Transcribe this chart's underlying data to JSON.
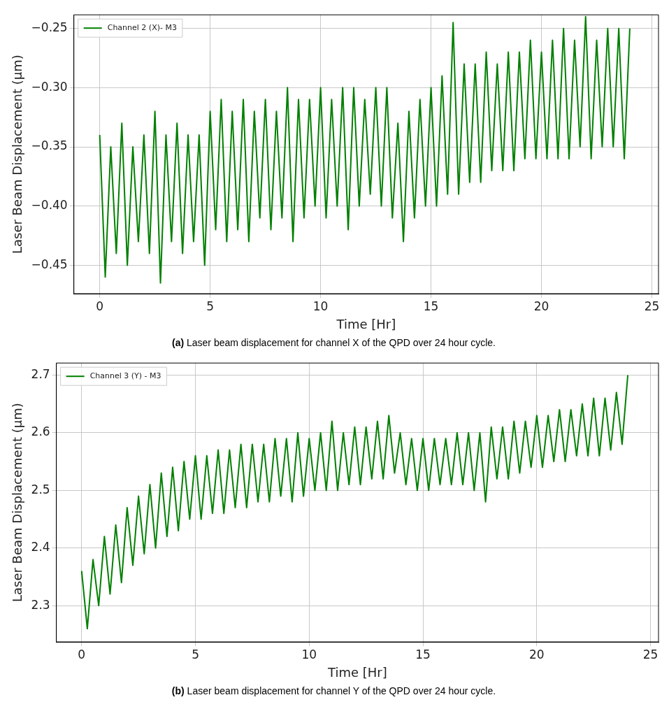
{
  "chart_data": [
    {
      "type": "line",
      "xlabel": "Time [Hr]",
      "ylabel": "Laser Beam Displacement (μm)",
      "annotations": [
        "(a) Laser beam displacement for channel X of the QPD over 24 hour cycle."
      ],
      "x": [
        0,
        0.25,
        0.5,
        0.75,
        1,
        1.25,
        1.5,
        1.75,
        2,
        2.25,
        2.5,
        2.75,
        3,
        3.25,
        3.5,
        3.75,
        4,
        4.25,
        4.5,
        4.75,
        5,
        5.25,
        5.5,
        5.75,
        6,
        6.25,
        6.5,
        6.75,
        7,
        7.25,
        7.5,
        7.75,
        8,
        8.25,
        8.5,
        8.75,
        9,
        9.25,
        9.5,
        9.75,
        10,
        10.25,
        10.5,
        10.75,
        11,
        11.25,
        11.5,
        11.75,
        12,
        12.25,
        12.5,
        12.75,
        13,
        13.25,
        13.5,
        13.75,
        14,
        14.25,
        14.5,
        14.75,
        15,
        15.25,
        15.5,
        15.75,
        16,
        16.25,
        16.5,
        16.75,
        17,
        17.25,
        17.5,
        17.75,
        18,
        18.25,
        18.5,
        18.75,
        19,
        19.25,
        19.5,
        19.75,
        20,
        20.25,
        20.5,
        20.75,
        21,
        21.25,
        21.5,
        21.75,
        22,
        22.25,
        22.5,
        22.75,
        23,
        23.25,
        23.5,
        23.75,
        24
      ],
      "series": [
        {
          "name": "Channel 2 (X)- M3",
          "color": "#008000",
          "values": [
            -0.34,
            -0.46,
            -0.35,
            -0.44,
            -0.33,
            -0.45,
            -0.35,
            -0.43,
            -0.34,
            -0.44,
            -0.32,
            -0.465,
            -0.34,
            -0.43,
            -0.33,
            -0.44,
            -0.34,
            -0.43,
            -0.34,
            -0.45,
            -0.32,
            -0.42,
            -0.31,
            -0.43,
            -0.32,
            -0.42,
            -0.31,
            -0.43,
            -0.32,
            -0.41,
            -0.31,
            -0.42,
            -0.32,
            -0.41,
            -0.3,
            -0.43,
            -0.31,
            -0.41,
            -0.31,
            -0.4,
            -0.3,
            -0.41,
            -0.31,
            -0.4,
            -0.3,
            -0.42,
            -0.3,
            -0.4,
            -0.31,
            -0.39,
            -0.3,
            -0.4,
            -0.3,
            -0.41,
            -0.33,
            -0.43,
            -0.32,
            -0.41,
            -0.31,
            -0.4,
            -0.3,
            -0.4,
            -0.29,
            -0.39,
            -0.245,
            -0.39,
            -0.28,
            -0.38,
            -0.28,
            -0.38,
            -0.27,
            -0.37,
            -0.28,
            -0.37,
            -0.27,
            -0.37,
            -0.27,
            -0.36,
            -0.26,
            -0.36,
            -0.27,
            -0.36,
            -0.26,
            -0.36,
            -0.25,
            -0.36,
            -0.26,
            -0.35,
            -0.24,
            -0.36,
            -0.26,
            -0.35,
            -0.25,
            -0.35,
            -0.25,
            -0.36,
            -0.25
          ]
        }
      ],
      "xlim": [
        -1.17,
        25.3
      ],
      "xticks": [
        0,
        5,
        10,
        15,
        20,
        25
      ],
      "ylim": [
        -0.474,
        -0.2385
      ],
      "yticks": [
        {
          "value": -0.45,
          "label": "−0.45"
        },
        {
          "value": -0.4,
          "label": "−0.40"
        },
        {
          "value": -0.35,
          "label": "−0.35"
        },
        {
          "value": -0.3,
          "label": "−0.30"
        },
        {
          "value": -0.25,
          "label": "−0.25"
        }
      ],
      "grid": true,
      "legend": "top left",
      "marker": "none",
      "line_style": "solid"
    },
    {
      "type": "line",
      "xlabel": "Time [Hr]",
      "ylabel": "Laser Beam Displacement (μm)",
      "annotations": [
        "(b) Laser beam displacement for channel Y of the QPD over 24 hour cycle."
      ],
      "x": [
        0,
        0.25,
        0.5,
        0.75,
        1,
        1.25,
        1.5,
        1.75,
        2,
        2.25,
        2.5,
        2.75,
        3,
        3.25,
        3.5,
        3.75,
        4,
        4.25,
        4.5,
        4.75,
        5,
        5.25,
        5.5,
        5.75,
        6,
        6.25,
        6.5,
        6.75,
        7,
        7.25,
        7.5,
        7.75,
        8,
        8.25,
        8.5,
        8.75,
        9,
        9.25,
        9.5,
        9.75,
        10,
        10.25,
        10.5,
        10.75,
        11,
        11.25,
        11.5,
        11.75,
        12,
        12.25,
        12.5,
        12.75,
        13,
        13.25,
        13.5,
        13.75,
        14,
        14.25,
        14.5,
        14.75,
        15,
        15.25,
        15.5,
        15.75,
        16,
        16.25,
        16.5,
        16.75,
        17,
        17.25,
        17.5,
        17.75,
        18,
        18.25,
        18.5,
        18.75,
        19,
        19.25,
        19.5,
        19.75,
        20,
        20.25,
        20.5,
        20.75,
        21,
        21.25,
        21.5,
        21.75,
        22,
        22.25,
        22.5,
        22.75,
        23,
        23.25,
        23.5,
        23.75,
        24
      ],
      "series": [
        {
          "name": "Channel 3 (Y) - M3",
          "color": "#008000",
          "values": [
            2.36,
            2.26,
            2.38,
            2.3,
            2.42,
            2.32,
            2.44,
            2.34,
            2.47,
            2.37,
            2.49,
            2.39,
            2.51,
            2.4,
            2.53,
            2.42,
            2.54,
            2.43,
            2.55,
            2.45,
            2.56,
            2.45,
            2.56,
            2.46,
            2.57,
            2.46,
            2.57,
            2.47,
            2.58,
            2.47,
            2.58,
            2.48,
            2.58,
            2.48,
            2.59,
            2.49,
            2.59,
            2.48,
            2.6,
            2.49,
            2.59,
            2.5,
            2.6,
            2.5,
            2.62,
            2.5,
            2.6,
            2.51,
            2.61,
            2.51,
            2.61,
            2.52,
            2.62,
            2.52,
            2.63,
            2.53,
            2.6,
            2.51,
            2.59,
            2.5,
            2.59,
            2.5,
            2.59,
            2.51,
            2.59,
            2.51,
            2.6,
            2.51,
            2.6,
            2.5,
            2.6,
            2.48,
            2.61,
            2.52,
            2.61,
            2.52,
            2.62,
            2.53,
            2.62,
            2.54,
            2.63,
            2.54,
            2.63,
            2.55,
            2.64,
            2.55,
            2.64,
            2.56,
            2.65,
            2.56,
            2.66,
            2.56,
            2.66,
            2.57,
            2.67,
            2.58,
            2.7
          ]
        }
      ],
      "xlim": [
        -1.11,
        25.35
      ],
      "xticks": [
        0,
        5,
        10,
        15,
        20,
        25
      ],
      "ylim": [
        2.237,
        2.721
      ],
      "yticks": [
        {
          "value": 2.3,
          "label": "2.3"
        },
        {
          "value": 2.4,
          "label": "2.4"
        },
        {
          "value": 2.5,
          "label": "2.5"
        },
        {
          "value": 2.6,
          "label": "2.6"
        },
        {
          "value": 2.7,
          "label": "2.7"
        }
      ],
      "grid": true,
      "legend": "top left",
      "marker": "none",
      "line_style": "solid"
    }
  ]
}
